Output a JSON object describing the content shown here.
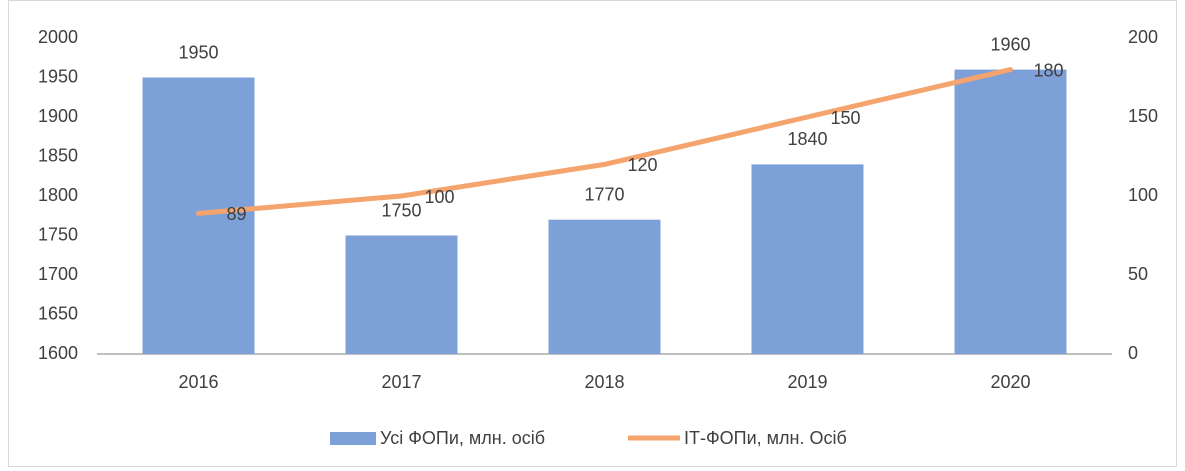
{
  "chart_data": {
    "type": "bar_line",
    "categories": [
      "2016",
      "2017",
      "2018",
      "2019",
      "2020"
    ],
    "series": [
      {
        "name": "Усі ФОПи, млн. осіб",
        "color": "#7da0d8",
        "type": "bar",
        "values": [
          1950,
          1750,
          1770,
          1840,
          1960
        ]
      },
      {
        "name": "ІТ-ФОПи, млн. Осіб",
        "color": "#f4a46c",
        "type": "line",
        "axis": "y2",
        "values": [
          89,
          100,
          120,
          150,
          180
        ]
      }
    ],
    "ylim": [
      1600,
      2000
    ],
    "yticks": [
      1600,
      1650,
      1700,
      1750,
      1800,
      1850,
      1900,
      1950,
      2000
    ],
    "y2lim": [
      0,
      200
    ],
    "y2ticks": [
      0,
      50,
      100,
      150,
      200
    ],
    "grid": false,
    "legend": "bottom"
  }
}
